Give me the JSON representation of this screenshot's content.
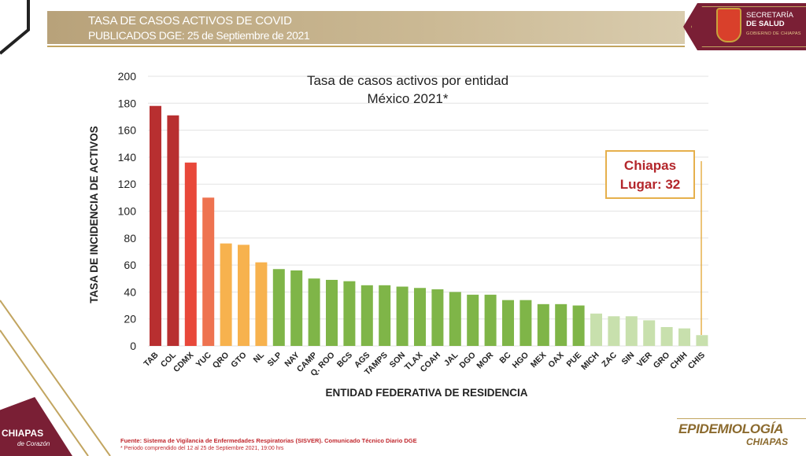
{
  "header": {
    "line1": "TASA DE CASOS ACTIVOS DE COVID",
    "line2": "PUBLICADOS DGE: 25 de Septiembre de 2021"
  },
  "secretaria": {
    "line1": "SECRETARÍA",
    "line2": "DE SALUD",
    "sub": "GOBIERNO DE CHIAPAS"
  },
  "chart_data": {
    "type": "bar",
    "title": "Tasa de casos activos por entidad",
    "subtitle": "México 2021*",
    "xlabel": "ENTIDAD FEDERATIVA DE RESIDENCIA",
    "ylabel": "TASA DE INCIDENCIA DE ACTIVOS",
    "ylim": [
      0,
      200
    ],
    "yticks": [
      0,
      20,
      40,
      60,
      80,
      100,
      120,
      140,
      160,
      180,
      200
    ],
    "grid": true,
    "categories": [
      "TAB",
      "COL",
      "CDMX",
      "YUC",
      "QRO",
      "GTO",
      "NL",
      "SLP",
      "NAY",
      "CAMP",
      "Q. ROO",
      "BCS",
      "AGS",
      "TAMPS",
      "SON",
      "TLAX",
      "COAH",
      "JAL",
      "DGO",
      "MOR",
      "BC",
      "HGO",
      "MEX",
      "OAX",
      "PUE",
      "MICH",
      "ZAC",
      "SIN",
      "VER",
      "GRO",
      "CHIH",
      "CHIS"
    ],
    "values": [
      178,
      171,
      136,
      110,
      76,
      75,
      62,
      57,
      56,
      50,
      49,
      48,
      45,
      45,
      44,
      43,
      42,
      40,
      38,
      38,
      34,
      34,
      31,
      31,
      30,
      24,
      22,
      22,
      19,
      14,
      13,
      8
    ],
    "colors": [
      "#b82f30",
      "#b82f30",
      "#e8483a",
      "#ee7350",
      "#f7b24e",
      "#f7b24e",
      "#f7b24e",
      "#7fb548",
      "#7fb548",
      "#7fb548",
      "#7fb548",
      "#7fb548",
      "#7fb548",
      "#7fb548",
      "#7fb548",
      "#7fb548",
      "#7fb548",
      "#7fb548",
      "#7fb548",
      "#7fb548",
      "#7fb548",
      "#7fb548",
      "#7fb548",
      "#7fb548",
      "#7fb548",
      "#c8e0ad",
      "#c8e0ad",
      "#c8e0ad",
      "#c8e0ad",
      "#c8e0ad",
      "#c8e0ad",
      "#c8e0ad"
    ],
    "annotation": {
      "line1": "Chiapas",
      "line2": "Lugar: 32",
      "target": "CHIS"
    }
  },
  "footer": {
    "source": "Fuente: Sistema de Vigilancia de Enfermedades Respiratorias (SISVER). Comunicado Técnico Diario DGE",
    "period": "* Periodo comprendido del 12 al 25 de Septiembre 2021, 19:00 hrs",
    "brand_left": "CHIAPAS",
    "brand_left_sub": "de Corazón",
    "brand_right": "EPIDEMIOLOGÍA",
    "brand_right_sub": "CHIAPAS"
  },
  "colors": {
    "wine": "#7a1f35",
    "gold": "#c2a560",
    "header_band": "#cbb994"
  }
}
